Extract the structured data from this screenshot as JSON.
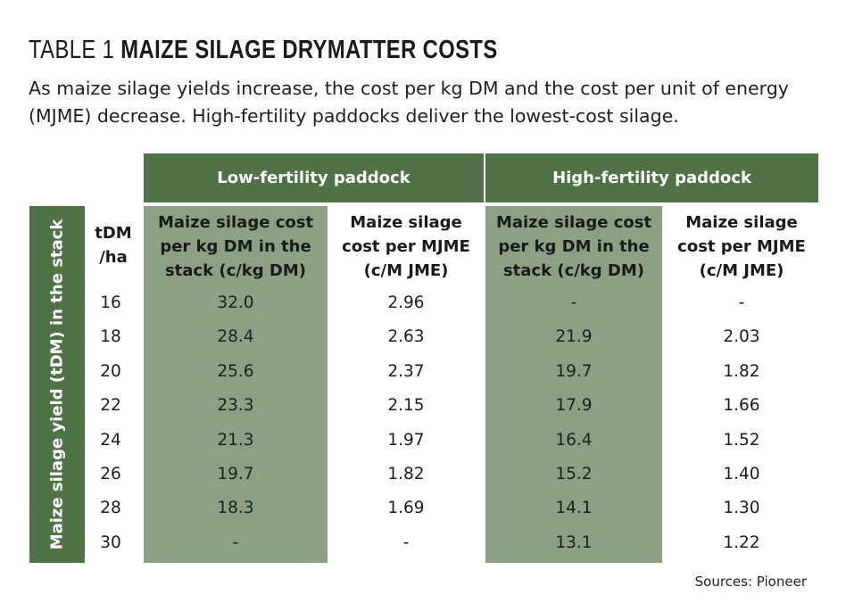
{
  "title": {
    "prefix": "TABLE 1 ",
    "main": "MAIZE SILAGE DRYMATTER COSTS"
  },
  "subtitle": "As maize silage yields increase, the cost per kg DM and the cost per unit of energy (MJME) decrease. High-fertility paddocks deliver the lowest-cost silage.",
  "groups": {
    "low": "Low-fertility paddock",
    "high": "High-fertility paddock"
  },
  "row_axis_label": "Maize silage yield (tDM) in the stack",
  "yield_header": "tDM /ha",
  "columns": {
    "low_kg": "Maize silage cost per kg DM in the stack (c/kg DM)",
    "low_mjme": "Maize silage cost per MJME (c/M JME)",
    "high_kg": "Maize silage cost per kg DM in the stack (c/kg DM)",
    "high_mjme": "Maize silage cost per MJME (c/M JME)"
  },
  "rows": [
    {
      "tdm": "16",
      "low_kg": "32.0",
      "low_mjme": "2.96",
      "high_kg": "-",
      "high_mjme": "-"
    },
    {
      "tdm": "18",
      "low_kg": "28.4",
      "low_mjme": "2.63",
      "high_kg": "21.9",
      "high_mjme": "2.03"
    },
    {
      "tdm": "20",
      "low_kg": "25.6",
      "low_mjme": "2.37",
      "high_kg": "19.7",
      "high_mjme": "1.82"
    },
    {
      "tdm": "22",
      "low_kg": "23.3",
      "low_mjme": "2.15",
      "high_kg": "17.9",
      "high_mjme": "1.66"
    },
    {
      "tdm": "24",
      "low_kg": "21.3",
      "low_mjme": "1.97",
      "high_kg": "16.4",
      "high_mjme": "1.52"
    },
    {
      "tdm": "26",
      "low_kg": "19.7",
      "low_mjme": "1.82",
      "high_kg": "15.2",
      "high_mjme": "1.40"
    },
    {
      "tdm": "28",
      "low_kg": "18.3",
      "low_mjme": "1.69",
      "high_kg": "14.1",
      "high_mjme": "1.30"
    },
    {
      "tdm": "30",
      "low_kg": "-",
      "low_mjme": "-",
      "high_kg": "13.1",
      "high_mjme": "1.22"
    }
  ],
  "sources": "Sources: Pioneer",
  "colors": {
    "dark_green": "#4f7346",
    "light_green": "#8da084"
  }
}
